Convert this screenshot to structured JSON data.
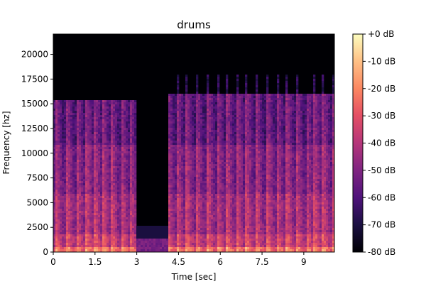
{
  "chart_data": {
    "type": "heatmap",
    "title": "drums",
    "xlabel": "Time [sec]",
    "ylabel": "Frequency [hz]",
    "xlim": [
      0,
      10.1
    ],
    "ylim": [
      0,
      22050
    ],
    "x_ticks": [
      0,
      1.5,
      3,
      4.5,
      6,
      7.5,
      9
    ],
    "x_tick_labels": [
      "0",
      "1.5",
      "3",
      "4.5",
      "6",
      "7.5",
      "9"
    ],
    "y_ticks": [
      0,
      2500,
      5000,
      7500,
      10000,
      12500,
      15000,
      17500,
      20000
    ],
    "y_tick_labels": [
      "0",
      "2500",
      "5000",
      "7500",
      "10000",
      "12500",
      "15000",
      "17500",
      "20000"
    ],
    "colorbar": {
      "range_db": [
        -80,
        0
      ],
      "ticks": [
        0,
        -10,
        -20,
        -30,
        -40,
        -50,
        -60,
        -70,
        -80
      ],
      "tick_labels": [
        "+0 dB",
        "-10 dB",
        "-20 dB",
        "-30 dB",
        "-40 dB",
        "-50 dB",
        "-60 dB",
        "-70 dB",
        "-80 dB"
      ],
      "colormap": "magma"
    },
    "observations": {
      "quiet_interval_sec": [
        3.0,
        4.1
      ],
      "onsets_sec": [
        0.1,
        0.5,
        0.85,
        1.2,
        1.5,
        1.8,
        2.1,
        2.45,
        2.75,
        3.0,
        4.1,
        4.45,
        4.8,
        5.15,
        5.55,
        5.9,
        6.25,
        6.6,
        6.95,
        7.3,
        7.7,
        8.05,
        8.4,
        8.75,
        9.1,
        9.4,
        9.7,
        10.05
      ]
    }
  }
}
